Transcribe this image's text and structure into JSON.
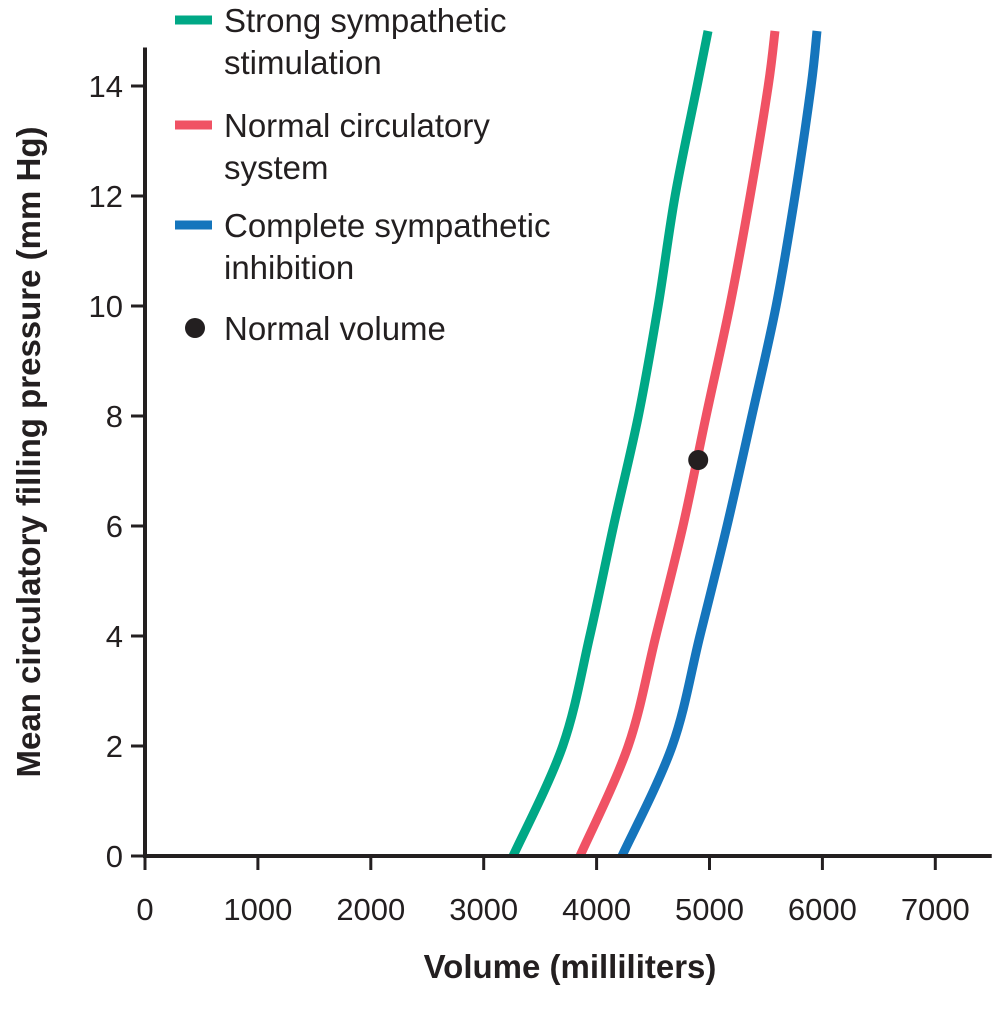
{
  "chart_data": {
    "type": "line",
    "title": "",
    "xlabel": "Volume (milliliters)",
    "ylabel": "Mean circulatory filling pressure (mm Hg)",
    "xlim": [
      0,
      7500
    ],
    "ylim": [
      0,
      14.7
    ],
    "xticks": [
      0,
      1000,
      2000,
      3000,
      4000,
      5000,
      6000,
      7000
    ],
    "yticks": [
      0,
      2,
      4,
      6,
      8,
      10,
      12,
      14
    ],
    "grid": false,
    "legend_position": "top-left",
    "series": [
      {
        "name": "Strong sympathetic stimulation",
        "color": "#00a886",
        "x": [
          3260,
          3700,
          3940,
          4150,
          4370,
          4545,
          4695,
          4890,
          4987
        ],
        "y": [
          0,
          2,
          4,
          6,
          8,
          10,
          12,
          14,
          15
        ]
      },
      {
        "name": "Normal circulatory system",
        "color": "#f05264",
        "x": [
          3853,
          4280,
          4525,
          4765,
          4970,
          5180,
          5360,
          5520,
          5580
        ],
        "y": [
          0,
          2,
          4,
          6,
          8,
          10,
          12,
          14,
          15
        ]
      },
      {
        "name": "Complete sympathetic inhibition",
        "color": "#1575bc",
        "x": [
          4225,
          4670,
          4915,
          5155,
          5375,
          5590,
          5757,
          5900,
          5952
        ],
        "y": [
          0,
          2,
          4,
          6,
          8,
          10,
          12,
          14,
          15
        ]
      }
    ],
    "points": [
      {
        "name": "Normal volume",
        "x": 4900,
        "y": 7.2,
        "color": "#231f20"
      }
    ],
    "legend": [
      {
        "lines": [
          "Strong sympathetic",
          "stimulation"
        ],
        "color": "#00a886",
        "marker": "line"
      },
      {
        "lines": [
          "Normal circulatory",
          "system"
        ],
        "color": "#f05264",
        "marker": "line"
      },
      {
        "lines": [
          "Complete sympathetic",
          "inhibition"
        ],
        "color": "#1575bc",
        "marker": "line"
      },
      {
        "lines": [
          "Normal volume"
        ],
        "color": "#231f20",
        "marker": "dot"
      }
    ]
  }
}
